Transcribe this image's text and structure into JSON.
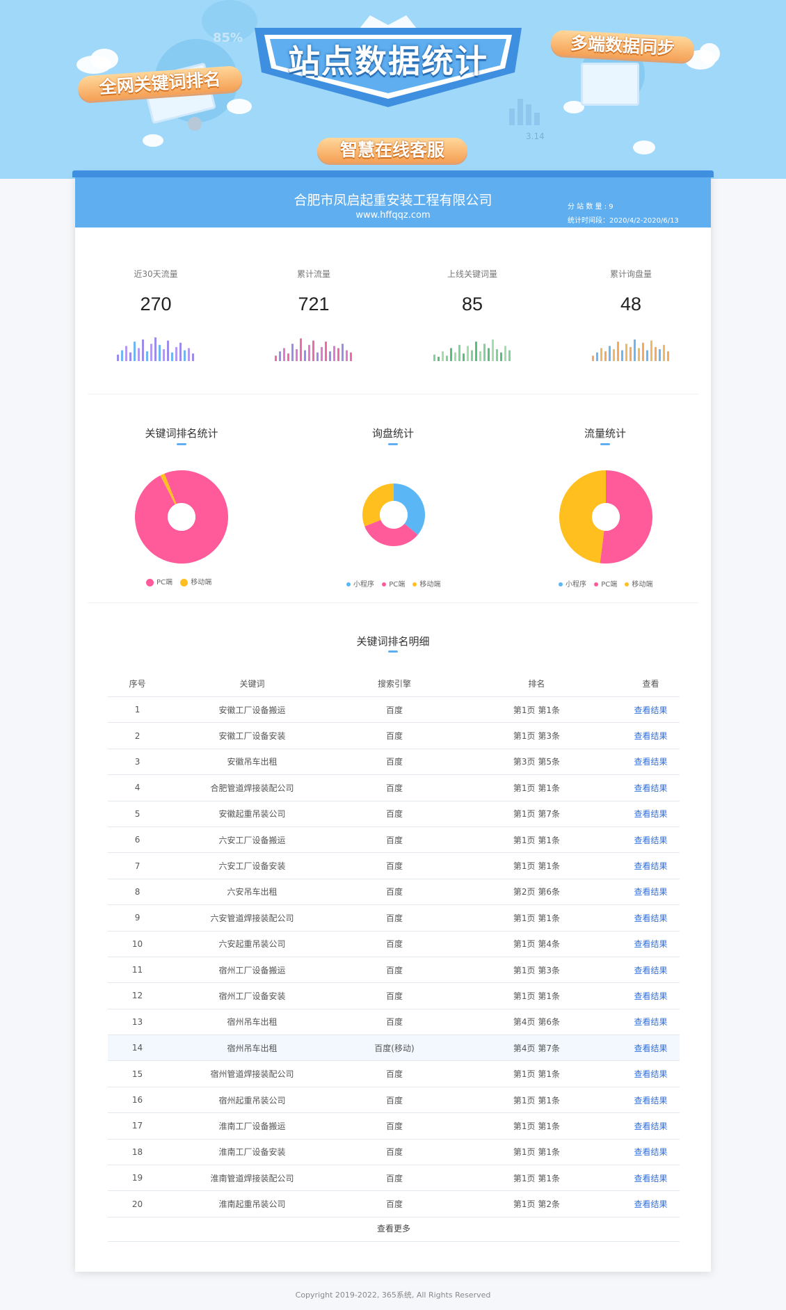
{
  "banner": {
    "main_title": "站点数据统计",
    "tags": [
      "全网关键词排名",
      "多端数据同步",
      "智慧在线客服"
    ],
    "deco_percent": "85%",
    "deco_date": "3.14"
  },
  "header": {
    "company": "合肥市凤启起重安装工程有限公司",
    "url": "www.hffqqz.com",
    "substation_count": "分 站 数 量 : 9",
    "stat_period": "统计时间段：2020/4/2-2020/6/13"
  },
  "stats": [
    {
      "label": "近30天流量",
      "value": "270",
      "color_scheme": "purple-blue"
    },
    {
      "label": "累计流量",
      "value": "721",
      "color_scheme": "pink-purple"
    },
    {
      "label": "上线关键词量",
      "value": "85",
      "color_scheme": "green"
    },
    {
      "label": "累计询盘量",
      "value": "48",
      "color_scheme": "orange-blue"
    }
  ],
  "pies": {
    "keyword_rank": {
      "title": "关键词排名统计",
      "legend": [
        "PC端",
        "移动端"
      ]
    },
    "inquiry": {
      "title": "询盘统计",
      "legend": [
        "小程序",
        "PC端",
        "移动端"
      ]
    },
    "traffic": {
      "title": "流量统计",
      "legend": [
        "小程序",
        "PC端",
        "移动端"
      ]
    }
  },
  "colors": {
    "pc": "#ff5a9a",
    "mobile": "#ffbf1f",
    "miniprogram": "#5ab6f5",
    "accent": "#5eaef0",
    "link": "#2f6fe0"
  },
  "chart_data": [
    {
      "type": "pie",
      "title": "关键词排名统计",
      "categories": [
        "PC端",
        "移动端"
      ],
      "values": [
        98.5,
        1.5
      ],
      "unit": "%"
    },
    {
      "type": "pie",
      "title": "询盘统计",
      "categories": [
        "小程序",
        "PC端",
        "移动端"
      ],
      "values": [
        36,
        33,
        31
      ],
      "unit": "%"
    },
    {
      "type": "pie",
      "title": "流量统计",
      "categories": [
        "小程序",
        "PC端",
        "移动端"
      ],
      "values": [
        0,
        52,
        48
      ],
      "unit": "%"
    }
  ],
  "table": {
    "title": "关键词排名明细",
    "columns": [
      "序号",
      "关键词",
      "搜索引擎",
      "排名",
      "查看"
    ],
    "link_label": "查看结果",
    "rows": [
      [
        "1",
        "安徽工厂设备搬运",
        "百度",
        "第1页 第1条"
      ],
      [
        "2",
        "安徽工厂设备安装",
        "百度",
        "第1页 第3条"
      ],
      [
        "3",
        "安徽吊车出租",
        "百度",
        "第3页 第5条"
      ],
      [
        "4",
        "合肥管道焊接装配公司",
        "百度",
        "第1页 第1条"
      ],
      [
        "5",
        "安徽起重吊装公司",
        "百度",
        "第1页 第7条"
      ],
      [
        "6",
        "六安工厂设备搬运",
        "百度",
        "第1页 第1条"
      ],
      [
        "7",
        "六安工厂设备安装",
        "百度",
        "第1页 第1条"
      ],
      [
        "8",
        "六安吊车出租",
        "百度",
        "第2页 第6条"
      ],
      [
        "9",
        "六安管道焊接装配公司",
        "百度",
        "第1页 第1条"
      ],
      [
        "10",
        "六安起重吊装公司",
        "百度",
        "第1页 第4条"
      ],
      [
        "11",
        "宿州工厂设备搬运",
        "百度",
        "第1页 第3条"
      ],
      [
        "12",
        "宿州工厂设备安装",
        "百度",
        "第1页 第1条"
      ],
      [
        "13",
        "宿州吊车出租",
        "百度",
        "第4页 第6条"
      ],
      [
        "14",
        "宿州吊车出租",
        "百度(移动)",
        "第4页 第7条"
      ],
      [
        "15",
        "宿州管道焊接装配公司",
        "百度",
        "第1页 第1条"
      ],
      [
        "16",
        "宿州起重吊装公司",
        "百度",
        "第1页 第1条"
      ],
      [
        "17",
        "淮南工厂设备搬运",
        "百度",
        "第1页 第1条"
      ],
      [
        "18",
        "淮南工厂设备安装",
        "百度",
        "第1页 第1条"
      ],
      [
        "19",
        "淮南管道焊接装配公司",
        "百度",
        "第1页 第1条"
      ],
      [
        "20",
        "淮南起重吊装公司",
        "百度",
        "第1页 第2条"
      ]
    ],
    "more_label": "查看更多"
  },
  "footer": {
    "copyright": "Copyright 2019-2022, 365系统, All Rights Reserved"
  }
}
